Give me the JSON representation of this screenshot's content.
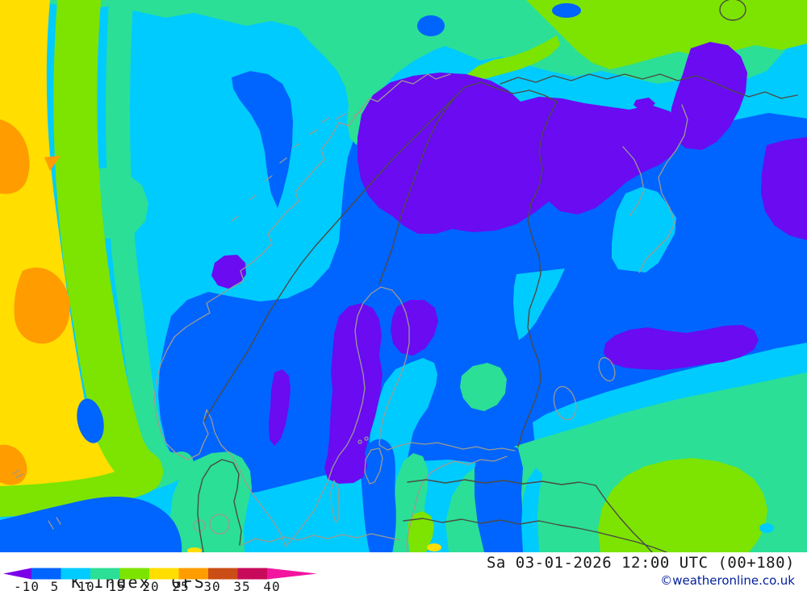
{
  "legend": {
    "parameter": "K-Index",
    "model": "GFS",
    "tick_labels": [
      "-10",
      "5",
      "10",
      "15",
      "20",
      "25",
      "30",
      "35",
      "40"
    ],
    "bar_colors": [
      "#7A00E8",
      "#0064FF",
      "#00CBFF",
      "#2BDF96",
      "#7CE400",
      "#FFDE00",
      "#FF9C00",
      "#C94D15",
      "#C80A5A",
      "#F215A0"
    ]
  },
  "footer": {
    "timestamp": "Sa 03-01-2026 12:00 UTC (00+180)",
    "copyright": "©weatheronline.co.uk"
  },
  "map_palette": {
    "blue": "#0064FF",
    "cyan": "#00CBFF",
    "teal": "#2BDF96",
    "green": "#7CE400",
    "yellow": "#FFDE00",
    "orange": "#FF9C00",
    "purple": "#6A0BF2",
    "coast": "#9C9B8F",
    "border": "#4B4B44"
  }
}
